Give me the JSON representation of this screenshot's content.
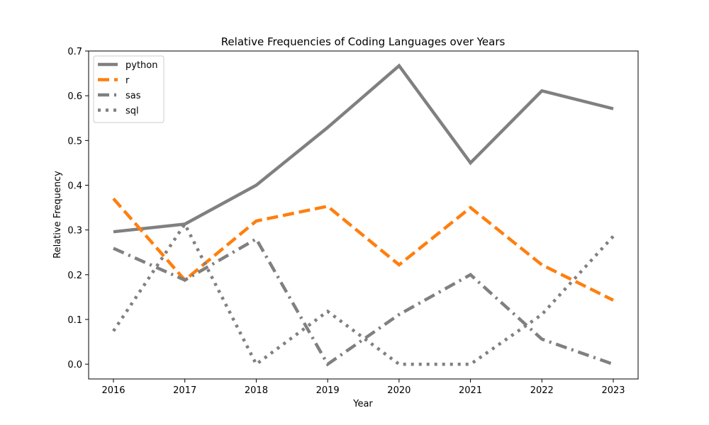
{
  "chart_data": {
    "type": "line",
    "title": "Relative Frequencies of Coding Languages over Years",
    "xlabel": "Year",
    "ylabel": "Relative Frequency",
    "x": [
      "2016",
      "2017",
      "2018",
      "2019",
      "2020",
      "2021",
      "2022",
      "2023"
    ],
    "ylim": [
      -0.033,
      0.7
    ],
    "yticks": [
      "0.0",
      "0.1",
      "0.2",
      "0.3",
      "0.4",
      "0.5",
      "0.6",
      "0.7"
    ],
    "grid": false,
    "legend_position": "upper-left",
    "series": [
      {
        "name": "python",
        "color": "#808080",
        "dash": "solid",
        "values": [
          0.296,
          0.313,
          0.4,
          0.529,
          0.667,
          0.45,
          0.611,
          0.571
        ]
      },
      {
        "name": "r",
        "color": "#ff7f0e",
        "dash": "dashed",
        "values": [
          0.37,
          0.188,
          0.32,
          0.353,
          0.222,
          0.35,
          0.222,
          0.143
        ]
      },
      {
        "name": "sas",
        "color": "#808080",
        "dash": "dashdot",
        "values": [
          0.259,
          0.188,
          0.28,
          0.0,
          0.111,
          0.2,
          0.056,
          0.0
        ]
      },
      {
        "name": "sql",
        "color": "#808080",
        "dash": "dotted",
        "values": [
          0.074,
          0.313,
          0.0,
          0.118,
          0.0,
          0.0,
          0.111,
          0.286
        ]
      }
    ]
  }
}
